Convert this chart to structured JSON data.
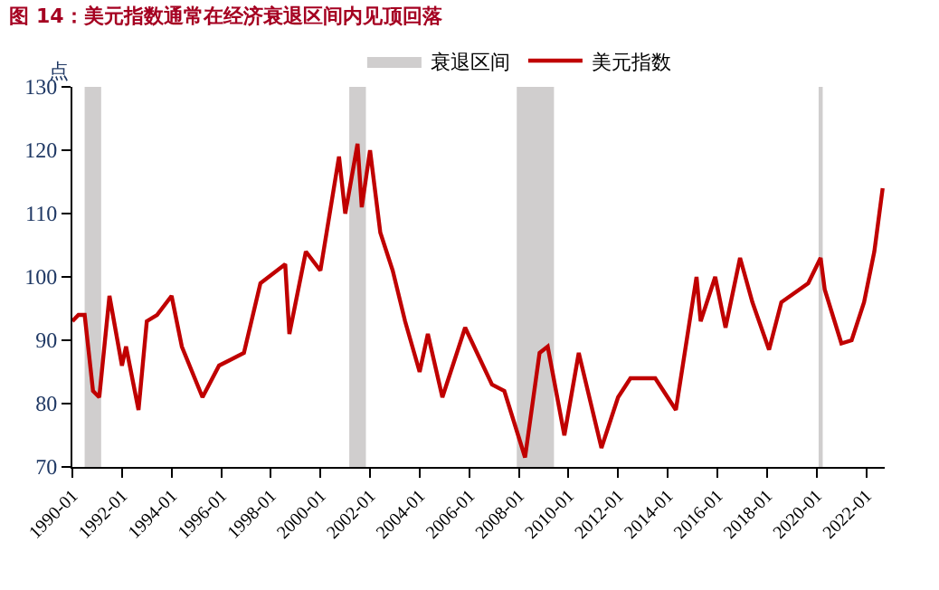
{
  "chart_data": {
    "type": "line",
    "title": "图 14：美元指数通常在经济衰退区间内见顶回落",
    "ylabel": "点",
    "x": [
      "1990-01",
      "1990-04",
      "1990-07",
      "1990-11",
      "1991-02",
      "1991-07",
      "1992-01",
      "1992-03",
      "1992-09",
      "1993-01",
      "1993-06",
      "1994-01",
      "1994-06",
      "1995-04",
      "1995-12",
      "1996-12",
      "1997-08",
      "1998-08",
      "1998-10",
      "1999-06",
      "2000-01",
      "2000-10",
      "2001-01",
      "2001-07",
      "2001-09",
      "2002-01",
      "2002-06",
      "2002-12",
      "2003-06",
      "2004-01",
      "2004-05",
      "2004-12",
      "2005-11",
      "2006-12",
      "2007-06",
      "2008-04",
      "2008-11",
      "2009-03",
      "2009-11",
      "2010-06",
      "2011-05",
      "2012-01",
      "2012-07",
      "2013-07",
      "2014-05",
      "2015-03",
      "2015-05",
      "2015-12",
      "2016-05",
      "2016-12",
      "2017-06",
      "2018-02",
      "2018-08",
      "2019-09",
      "2020-03",
      "2020-05",
      "2021-01",
      "2021-06",
      "2021-12",
      "2022-05",
      "2022-09"
    ],
    "series": [
      {
        "name": "美元指数",
        "color": "#c00000",
        "values": [
          93,
          94,
          94,
          82,
          81,
          97,
          86,
          89,
          79,
          93,
          94,
          97,
          89,
          81,
          86,
          88,
          99,
          102,
          91,
          104,
          101,
          119,
          110,
          121,
          111,
          120,
          107,
          101,
          93,
          85,
          91,
          81,
          92,
          83,
          82,
          71.5,
          88,
          89,
          75,
          88,
          73,
          81,
          84,
          84,
          79,
          100,
          93,
          100,
          92,
          103,
          96,
          88.5,
          96,
          99,
          103,
          98,
          89.5,
          90,
          96,
          104,
          114
        ]
      }
    ],
    "bands": [
      {
        "axis": "x",
        "from": "1990-07",
        "to": "1991-03",
        "label": "衰退区间",
        "color": "#d0cece"
      },
      {
        "axis": "x",
        "from": "2001-03",
        "to": "2001-11",
        "color": "#d0cece"
      },
      {
        "axis": "x",
        "from": "2007-12",
        "to": "2009-06",
        "color": "#d0cece"
      },
      {
        "axis": "x",
        "from": "2020-02",
        "to": "2020-04",
        "color": "#d0cece"
      }
    ],
    "xlim": [
      "1990-01",
      "2022-10"
    ],
    "xticks": [
      "1990-01",
      "1992-01",
      "1994-01",
      "1996-01",
      "1998-01",
      "2000-01",
      "2002-01",
      "2004-01",
      "2006-01",
      "2008-01",
      "2010-01",
      "2012-01",
      "2014-01",
      "2016-01",
      "2018-01",
      "2020-01",
      "2022-01"
    ],
    "ylim": [
      70,
      130
    ],
    "yticks": [
      70,
      80,
      90,
      100,
      110,
      120,
      130
    ],
    "legend": "top",
    "marker": "none",
    "line_style": "solid"
  }
}
